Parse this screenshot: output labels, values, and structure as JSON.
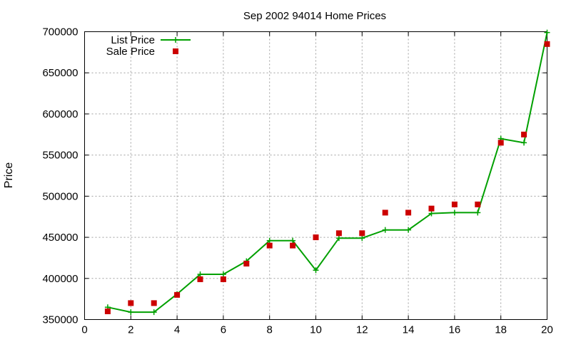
{
  "chart_data": {
    "type": "line",
    "title": "Sep 2002 94014 Home Prices",
    "xlabel": "",
    "ylabel": "Price",
    "xlim": [
      0,
      20
    ],
    "ylim": [
      350000,
      700000
    ],
    "x_ticks": [
      0,
      2,
      4,
      6,
      8,
      10,
      12,
      14,
      16,
      18,
      20
    ],
    "y_ticks": [
      350000,
      400000,
      450000,
      500000,
      550000,
      600000,
      650000,
      700000
    ],
    "grid": true,
    "legend_position": "top-left",
    "series": [
      {
        "name": "List Price",
        "style": "line+cross",
        "color": "#00a000",
        "x": [
          1,
          2,
          3,
          4,
          5,
          6,
          7,
          8,
          9,
          10,
          11,
          12,
          13,
          14,
          15,
          16,
          17,
          18,
          19,
          20
        ],
        "y": [
          365000,
          359000,
          359000,
          381000,
          405000,
          405000,
          421000,
          446000,
          446000,
          410000,
          449000,
          449000,
          459000,
          459000,
          479000,
          480000,
          480000,
          570000,
          565000,
          699000
        ]
      },
      {
        "name": "Sale Price",
        "style": "square",
        "color": "#cc0000",
        "x": [
          1,
          2,
          3,
          4,
          5,
          6,
          7,
          8,
          9,
          10,
          11,
          12,
          13,
          14,
          15,
          16,
          17,
          18,
          19,
          20
        ],
        "y": [
          360000,
          370000,
          370000,
          380000,
          399000,
          399000,
          418000,
          440000,
          440000,
          450000,
          455000,
          455000,
          480000,
          480000,
          485000,
          490000,
          490000,
          565000,
          575000,
          685000
        ]
      }
    ]
  }
}
